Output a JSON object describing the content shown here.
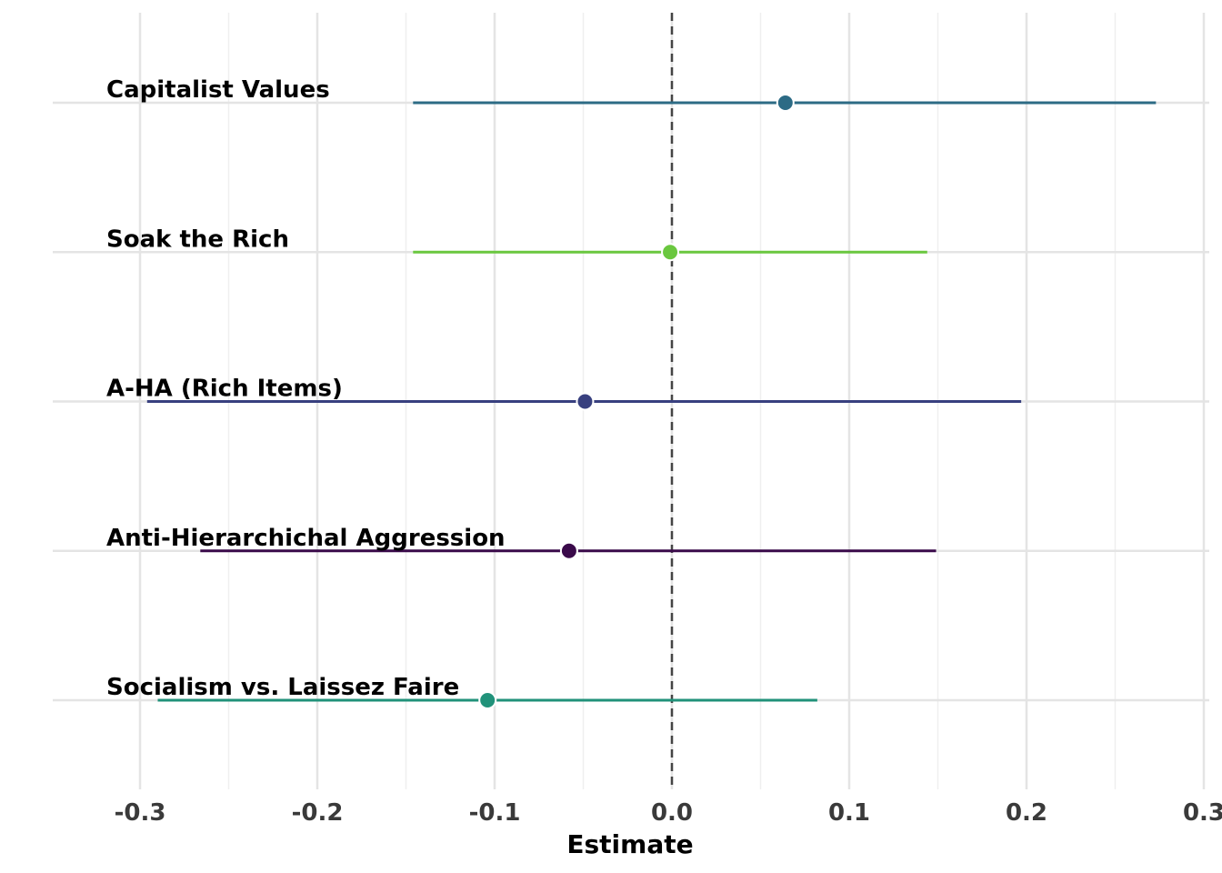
{
  "chart_data": {
    "type": "scatter",
    "xlabel": "Estimate",
    "ylabel": "",
    "title": "",
    "xlim": [
      -0.35,
      0.3
    ],
    "xticks": [
      -0.3,
      -0.2,
      -0.1,
      0.0,
      0.1,
      0.2,
      0.3
    ],
    "xtick_labels": [
      "-0.3",
      "-0.2",
      "-0.1",
      "0.0",
      "0.1",
      "0.2",
      "0.3"
    ],
    "grid": true,
    "reference_line": {
      "x": 0,
      "style": "dashed"
    },
    "series": [
      {
        "label": "Capitalist Values",
        "estimate": 0.064,
        "lower": -0.146,
        "upper": 0.273,
        "color": "#2c6b85"
      },
      {
        "label": "Soak the Rich",
        "estimate": -0.001,
        "lower": -0.146,
        "upper": 0.144,
        "color": "#6ac73f"
      },
      {
        "label": "A-HA (Rich Items)",
        "estimate": -0.049,
        "lower": -0.296,
        "upper": 0.197,
        "color": "#38407f"
      },
      {
        "label": "Anti-Hierarchichal Aggression",
        "estimate": -0.058,
        "lower": -0.266,
        "upper": 0.149,
        "color": "#3a0a4a"
      },
      {
        "label": "Socialism vs. Laissez Faire",
        "estimate": -0.104,
        "lower": -0.29,
        "upper": 0.082,
        "color": "#21927a"
      }
    ]
  }
}
